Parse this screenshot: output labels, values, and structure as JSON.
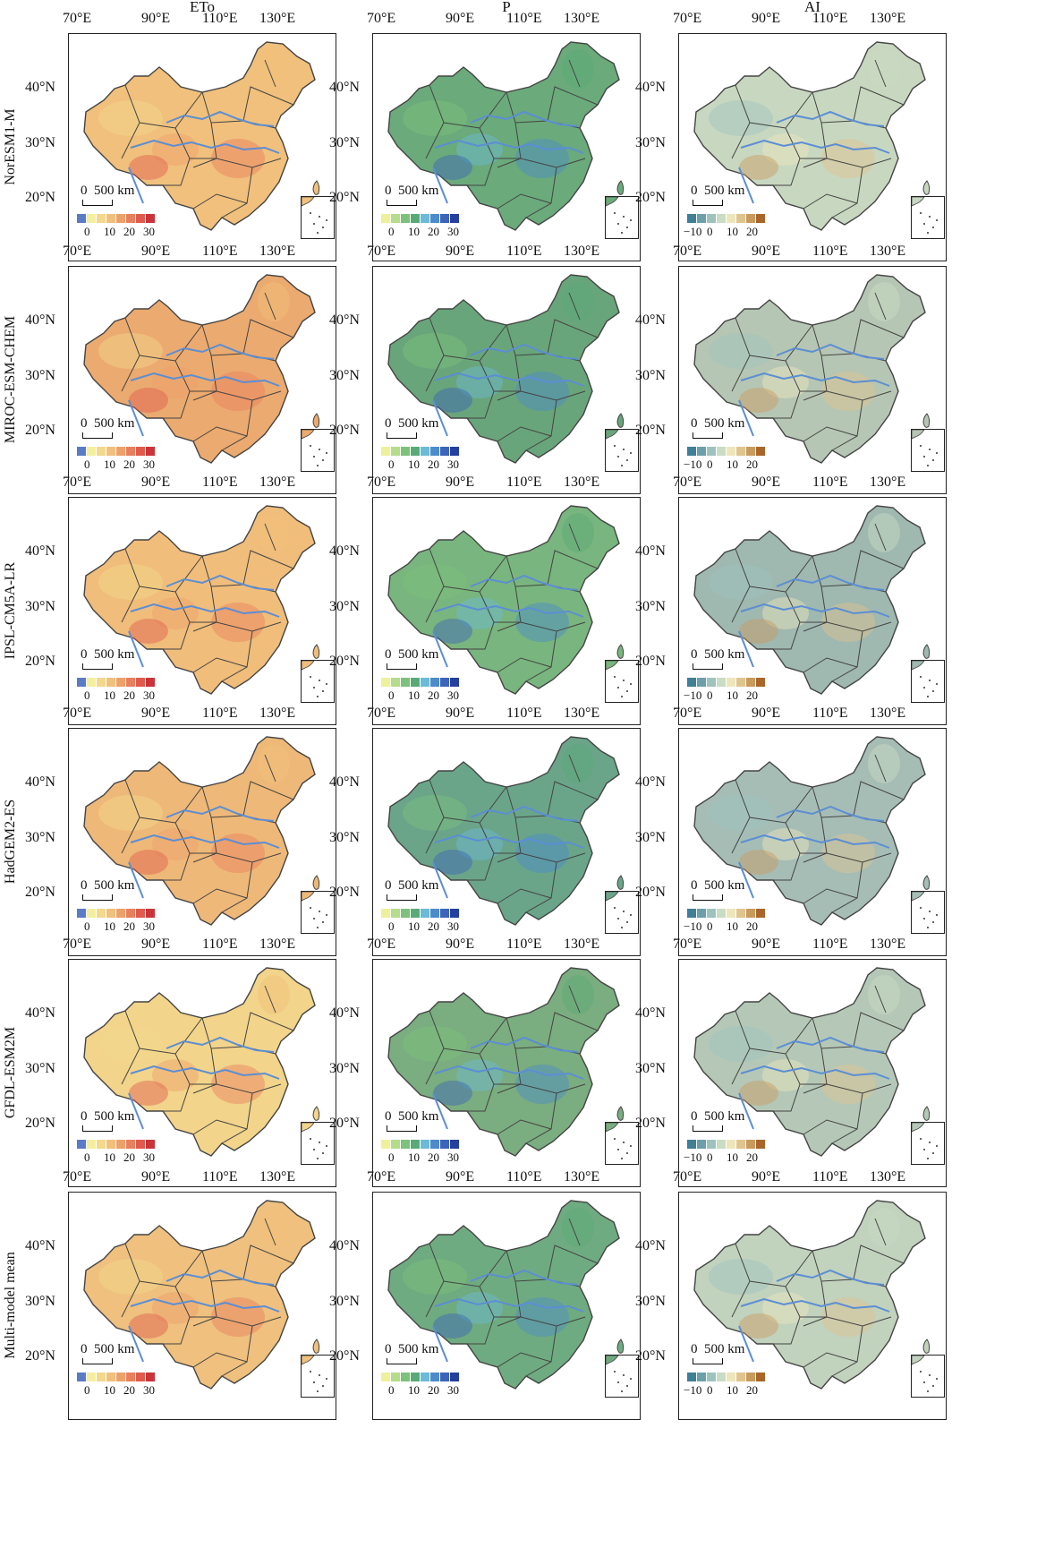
{
  "columns": [
    {
      "key": "eto",
      "title": "ETo",
      "legend_ticks": [
        "0",
        "10",
        "20",
        "30"
      ],
      "legend_colors": [
        "#5b7bc4",
        "#f3ef9e",
        "#f2d98b",
        "#f1c07b",
        "#eea06b",
        "#e87f5d",
        "#e05a4d",
        "#c9343a"
      ]
    },
    {
      "key": "p",
      "title": "P",
      "legend_ticks": [
        "0",
        "10",
        "20",
        "30"
      ],
      "legend_colors": [
        "#eef19a",
        "#b5dc8a",
        "#7cc27a",
        "#5aaa78",
        "#6cbad8",
        "#4c8bcd",
        "#3c64b8",
        "#243f9e"
      ]
    },
    {
      "key": "ai",
      "title": "AI",
      "legend_ticks": [
        "−10",
        "0",
        "10",
        "20"
      ],
      "legend_colors": [
        "#3f7f97",
        "#6c9fac",
        "#9ec3bf",
        "#c9dcc4",
        "#ede6bd",
        "#e0c48e",
        "#c99a5d",
        "#a8662c"
      ]
    }
  ],
  "rows": [
    {
      "label": "NorESM1-M",
      "colors": {
        "eto": "#f0c07c",
        "p": "#6aaa7b",
        "ai": "#c8d8c0"
      }
    },
    {
      "label": "MIROC-ESM-CHEM",
      "colors": {
        "eto": "#ebaa6f",
        "p": "#69a57a",
        "ai": "#b6c6b4"
      }
    },
    {
      "label": "IPSL-CM5A-LR",
      "colors": {
        "eto": "#f0bd7b",
        "p": "#79b57e",
        "ai": "#9fb8b0"
      }
    },
    {
      "label": "HadGEM2-ES",
      "colors": {
        "eto": "#eeb878",
        "p": "#6aa58a",
        "ai": "#a6bdb6"
      }
    },
    {
      "label": "GFDL-ESM2M",
      "colors": {
        "eto": "#f2d48b",
        "p": "#7aad7f",
        "ai": "#b5c8b7"
      }
    },
    {
      "label": "Multi-model mean",
      "colors": {
        "eto": "#efc07e",
        "p": "#6fab80",
        "ai": "#c1d2bd"
      }
    }
  ],
  "lon_labels": [
    "70°E",
    "90°E",
    "110°E",
    "130°E"
  ],
  "lat_labels": [
    "40°N",
    "30°N",
    "20°N"
  ],
  "scale_label": "0  500 km",
  "colors": {
    "river": "#5b8ed4",
    "border": "#444444",
    "frame": "#222222"
  }
}
